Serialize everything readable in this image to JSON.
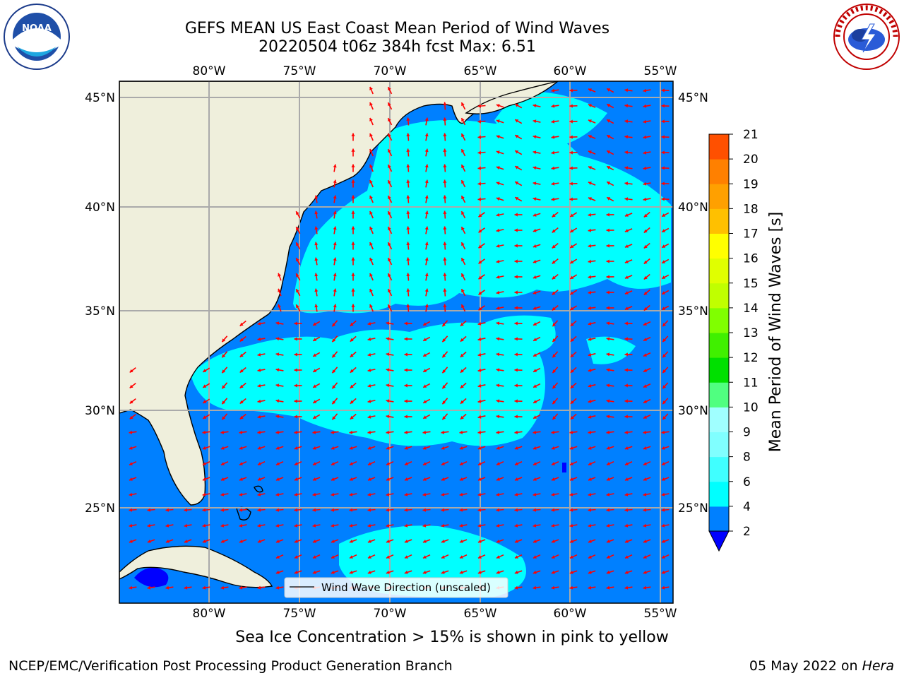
{
  "title_line1": "GEFS MEAN US East Coast Mean Period of Wind Waves",
  "title_line2": "20220504 t06z 384h fcst   Max: 6.51",
  "logos": {
    "left": "noaa-logo",
    "right": "national-weather-service-logo"
  },
  "map": {
    "lon_ticks": [
      "80°W",
      "75°W",
      "70°W",
      "65°W",
      "60°W",
      "55°W"
    ],
    "lat_ticks": [
      "45°N",
      "40°N",
      "35°N",
      "30°N",
      "25°N"
    ],
    "legend_label": "Wind Wave Direction (unscaled)",
    "arrow_color": "#ff0000",
    "land_color": "#efefdc",
    "grid": true
  },
  "colorbar": {
    "label": "Mean Period of Wind Waves [s]",
    "ticks": [
      "2",
      "4",
      "6",
      "8",
      "9",
      "10",
      "11",
      "12",
      "13",
      "14",
      "15",
      "16",
      "17",
      "18",
      "19",
      "20",
      "21"
    ],
    "colors": [
      "#0080ff",
      "#00ffff",
      "#40ffff",
      "#80ffff",
      "#a0ffff",
      "#50ff80",
      "#00e000",
      "#40f000",
      "#80ff00",
      "#c0ff00",
      "#e0ff00",
      "#ffff00",
      "#ffc000",
      "#ffa000",
      "#ff8000",
      "#ff5000",
      "#ff2000",
      "#ff0000"
    ],
    "extend_low_color": "#0000ff"
  },
  "ice_note": "Sea Ice Concentration > 15% is shown in pink to yellow",
  "credit": "NCEP/EMC/Verification Post Processing Product Generation Branch",
  "run_date": "05 May 2022 on",
  "machine": "Hera"
}
